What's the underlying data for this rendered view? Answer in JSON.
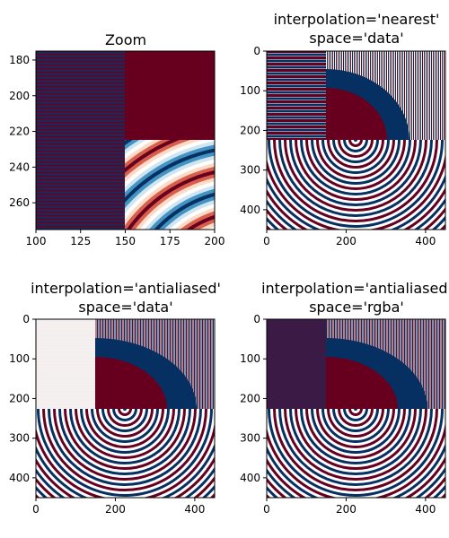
{
  "chart_data": [
    {
      "type": "heatmap",
      "title": "Zoom",
      "xlim": [
        100,
        200
      ],
      "ylim": [
        275,
        175
      ],
      "xticks": [
        100,
        125,
        150,
        175,
        200
      ],
      "yticks": [
        180,
        200,
        220,
        240,
        260
      ],
      "regions": [
        "horizontal-stripes",
        "solid-red",
        "concentric-rings"
      ],
      "colormap": "RdBu",
      "colors": {
        "red": "#67001f",
        "blue": "#053061",
        "purple": "#3b1a45",
        "light": "#f3f3f3",
        "mid": "#f7f7f7"
      }
    },
    {
      "type": "heatmap",
      "title": "interpolation='nearest'\nspace='data'",
      "xlim": [
        0,
        450
      ],
      "ylim": [
        450,
        0
      ],
      "xticks": [
        0,
        200,
        400
      ],
      "yticks": [
        0,
        100,
        200,
        300,
        400
      ],
      "left_region": "horizontal-stripes",
      "colormap": "RdBu"
    },
    {
      "type": "heatmap",
      "title": "interpolation='antialiased'\nspace='data'",
      "xlim": [
        0,
        450
      ],
      "ylim": [
        450,
        0
      ],
      "xticks": [
        0,
        200,
        400
      ],
      "yticks": [
        0,
        100,
        200,
        300,
        400
      ],
      "left_region": "light-gray",
      "colormap": "RdBu"
    },
    {
      "type": "heatmap",
      "title": "interpolation='antialiased'\nspace='rgba'",
      "xlim": [
        0,
        450
      ],
      "ylim": [
        450,
        0
      ],
      "xticks": [
        0,
        200,
        400
      ],
      "yticks": [
        0,
        100,
        200,
        300,
        400
      ],
      "left_region": "dark-purple",
      "colormap": "RdBu"
    }
  ]
}
